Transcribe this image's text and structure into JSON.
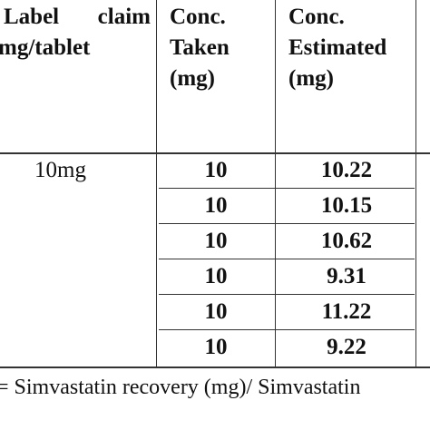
{
  "table": {
    "header": [
      [
        "Label claim",
        "mg/tablet"
      ],
      [
        "Conc.",
        "Taken",
        "(mg)"
      ],
      [
        "Conc.",
        "Estimated",
        "(mg)"
      ]
    ],
    "rows": [
      [
        "10mg",
        "10",
        "10.22"
      ],
      [
        null,
        "10",
        "10.15"
      ],
      [
        null,
        "10",
        "10.62"
      ],
      [
        null,
        "10",
        "9.31"
      ],
      [
        null,
        "10",
        "11.22"
      ],
      [
        null,
        "10",
        "9.22"
      ]
    ]
  },
  "footer": "= Simvastatin recovery (mg)/ Simvastatin"
}
